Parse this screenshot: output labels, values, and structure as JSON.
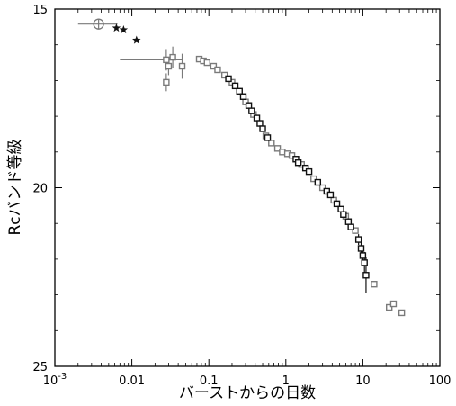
{
  "chart_data": {
    "type": "scatter",
    "title": "",
    "xlabel": "バーストからの日数",
    "ylabel": "Rcバンド等級",
    "x_scale": "log",
    "xlim": [
      0.001,
      100
    ],
    "ylim": [
      15,
      25
    ],
    "y_inverted": true,
    "grid": false,
    "legend": "none",
    "x_ticks": [
      {
        "value": 0.001,
        "base": "10",
        "exp": "-3"
      },
      {
        "value": 0.01,
        "label": "0.01"
      },
      {
        "value": 0.1,
        "label": "0.1"
      },
      {
        "value": 1,
        "label": "1"
      },
      {
        "value": 10,
        "label": "10"
      },
      {
        "value": 100,
        "label": "100"
      }
    ],
    "y_ticks": [
      {
        "value": 15,
        "label": "15"
      },
      {
        "value": 20,
        "label": "20"
      },
      {
        "value": 25,
        "label": "25"
      }
    ],
    "colors": {
      "black": "#111111",
      "gray": "#7a7a7a"
    },
    "series": [
      {
        "marker": "circle-cross",
        "color": "#7a7a7a",
        "points": [
          {
            "x": 0.0037,
            "y": 15.42,
            "x_err": [
              0.002,
              0.0065
            ]
          }
        ]
      },
      {
        "marker": "star",
        "color": "#111111",
        "points": [
          {
            "x": 0.0063,
            "y": 15.53
          },
          {
            "x": 0.0078,
            "y": 15.58
          },
          {
            "x": 0.0115,
            "y": 15.87
          }
        ]
      },
      {
        "marker": "square",
        "color": "#7a7a7a",
        "points": [
          {
            "x": 0.028,
            "y": 16.42,
            "x_err": [
              0.007,
              0.046
            ],
            "y_err": 0.3
          },
          {
            "x": 0.03,
            "y": 16.6,
            "y_err": 0.25
          },
          {
            "x": 0.034,
            "y": 16.35,
            "y_err": 0.3
          },
          {
            "x": 0.045,
            "y": 16.6,
            "y_err": 0.35
          },
          {
            "x": 0.028,
            "y": 17.05,
            "y_err": 0.25
          },
          {
            "x": 0.075,
            "y": 16.4
          },
          {
            "x": 0.085,
            "y": 16.45
          },
          {
            "x": 0.095,
            "y": 16.5
          },
          {
            "x": 0.115,
            "y": 16.6
          },
          {
            "x": 0.13,
            "y": 16.7
          },
          {
            "x": 0.16,
            "y": 16.85
          },
          {
            "x": 0.2,
            "y": 17.05
          },
          {
            "x": 0.3,
            "y": 17.6
          },
          {
            "x": 0.38,
            "y": 17.95
          },
          {
            "x": 0.55,
            "y": 18.55
          },
          {
            "x": 0.65,
            "y": 18.75
          },
          {
            "x": 0.78,
            "y": 18.9
          },
          {
            "x": 0.9,
            "y": 19.0
          },
          {
            "x": 1.05,
            "y": 19.05
          },
          {
            "x": 1.2,
            "y": 19.1
          },
          {
            "x": 1.6,
            "y": 19.35
          },
          {
            "x": 2.3,
            "y": 19.75
          },
          {
            "x": 3.0,
            "y": 20.0
          },
          {
            "x": 4.2,
            "y": 20.35
          },
          {
            "x": 6.0,
            "y": 20.8
          },
          {
            "x": 8.0,
            "y": 21.2
          },
          {
            "x": 14.0,
            "y": 22.7
          },
          {
            "x": 22.0,
            "y": 23.35
          },
          {
            "x": 25.0,
            "y": 23.25
          },
          {
            "x": 32.0,
            "y": 23.5
          }
        ]
      },
      {
        "marker": "square",
        "color": "#111111",
        "points": [
          {
            "x": 0.18,
            "y": 16.95
          },
          {
            "x": 0.22,
            "y": 17.15
          },
          {
            "x": 0.25,
            "y": 17.3
          },
          {
            "x": 0.28,
            "y": 17.45
          },
          {
            "x": 0.33,
            "y": 17.7
          },
          {
            "x": 0.36,
            "y": 17.85
          },
          {
            "x": 0.42,
            "y": 18.05
          },
          {
            "x": 0.46,
            "y": 18.2
          },
          {
            "x": 0.5,
            "y": 18.35
          },
          {
            "x": 0.58,
            "y": 18.6
          },
          {
            "x": 1.35,
            "y": 19.2
          },
          {
            "x": 1.45,
            "y": 19.3
          },
          {
            "x": 1.8,
            "y": 19.45
          },
          {
            "x": 2.0,
            "y": 19.55
          },
          {
            "x": 2.6,
            "y": 19.85
          },
          {
            "x": 3.4,
            "y": 20.1
          },
          {
            "x": 3.8,
            "y": 20.2
          },
          {
            "x": 4.6,
            "y": 20.45
          },
          {
            "x": 5.2,
            "y": 20.6
          },
          {
            "x": 5.6,
            "y": 20.75
          },
          {
            "x": 6.5,
            "y": 20.95
          },
          {
            "x": 7.0,
            "y": 21.1
          },
          {
            "x": 8.8,
            "y": 21.45,
            "y_err": 0.15
          },
          {
            "x": 9.5,
            "y": 21.7,
            "y_err": 0.2
          },
          {
            "x": 10.0,
            "y": 21.9,
            "y_err": 0.25
          },
          {
            "x": 10.5,
            "y": 22.1,
            "y_err": 0.3
          },
          {
            "x": 11.0,
            "y": 22.45,
            "y_err": 0.5
          }
        ]
      }
    ]
  }
}
